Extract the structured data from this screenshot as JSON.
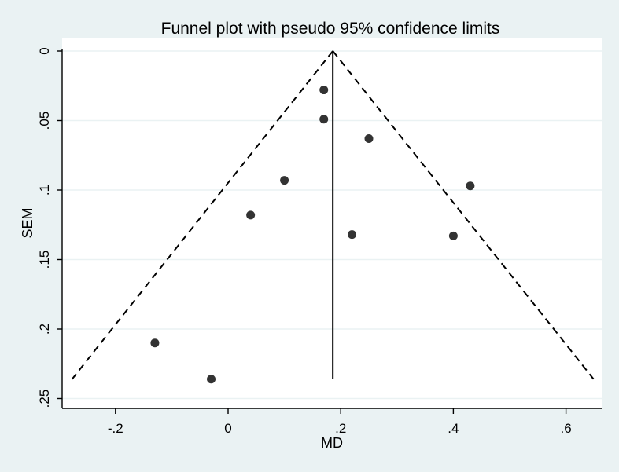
{
  "chart_data": {
    "type": "scatter",
    "title": "Funnel plot with pseudo 95% confidence limits",
    "xlabel": "MD",
    "ylabel": "SEM",
    "xlim": [
      -0.3,
      0.67
    ],
    "ylim": [
      0.25,
      0
    ],
    "y_axis_reversed": true,
    "grid": true,
    "x_ticks": [
      -0.2,
      0,
      0.2,
      0.4,
      0.6
    ],
    "x_tick_labels": [
      "-.2",
      "0",
      ".2",
      ".4",
      ".6"
    ],
    "y_ticks": [
      0,
      0.05,
      0.1,
      0.15,
      0.2,
      0.25
    ],
    "y_tick_labels": [
      "0",
      ".05",
      ".1",
      ".15",
      ".2",
      ".25"
    ],
    "points": [
      {
        "x": 0.17,
        "y": 0.028
      },
      {
        "x": 0.17,
        "y": 0.049
      },
      {
        "x": 0.25,
        "y": 0.063
      },
      {
        "x": 0.1,
        "y": 0.093
      },
      {
        "x": 0.43,
        "y": 0.097
      },
      {
        "x": 0.04,
        "y": 0.118
      },
      {
        "x": 0.22,
        "y": 0.132
      },
      {
        "x": 0.4,
        "y": 0.133
      },
      {
        "x": -0.13,
        "y": 0.21
      },
      {
        "x": -0.03,
        "y": 0.236
      }
    ],
    "pooled_estimate": 0.186,
    "vertical_line": {
      "x": 0.186,
      "y_from": 0,
      "y_to": 0.236
    },
    "confidence_limits": {
      "level": "95%",
      "apex": {
        "x": 0.186,
        "y": 0
      },
      "left_end": {
        "x": -0.277,
        "y": 0.236
      },
      "right_end": {
        "x": 0.649,
        "y": 0.236
      }
    },
    "colors": {
      "background": "#eaf2f3",
      "plot_area": "#ffffff",
      "grid": "#eaf2f3",
      "marker": "#333333",
      "lines": "#000000"
    }
  }
}
